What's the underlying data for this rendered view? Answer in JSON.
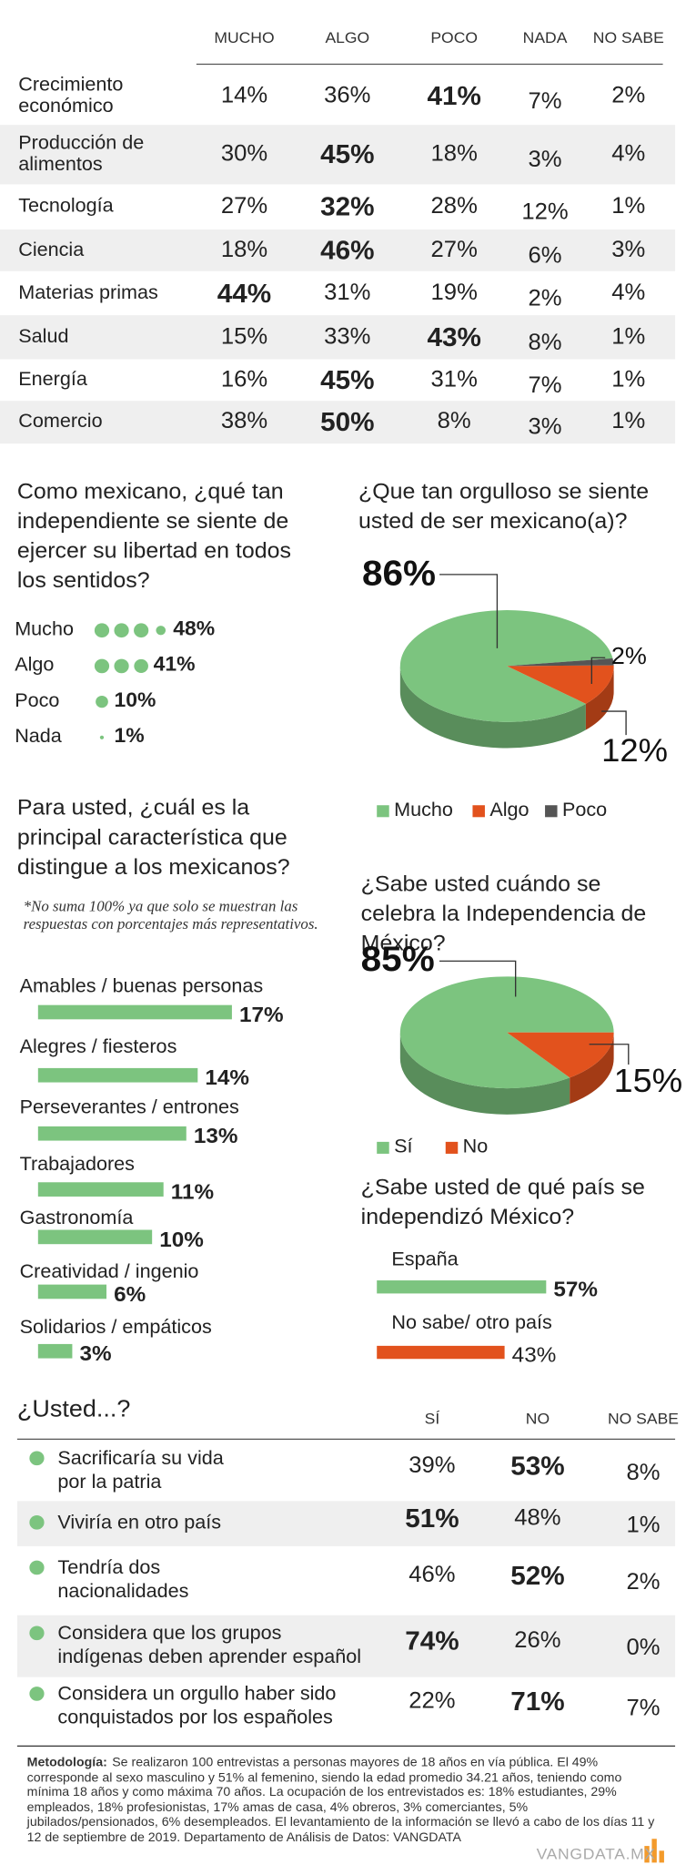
{
  "top_table": {
    "columns": [
      "MUCHO",
      "ALGO",
      "POCO",
      "NADA",
      "NO SABE"
    ],
    "rows": [
      {
        "label": "Crecimiento\neconómico",
        "cells": [
          "14%",
          "36%",
          "41%",
          "7%",
          "2%"
        ]
      },
      {
        "label": "Producción de\nalimentos",
        "cells": [
          "30%",
          "45%",
          "18%",
          "3%",
          "4%"
        ]
      },
      {
        "label": "Tecnología",
        "cells": [
          "27%",
          "32%",
          "28%",
          "12%",
          "1%"
        ]
      },
      {
        "label": "Ciencia",
        "cells": [
          "18%",
          "46%",
          "27%",
          "6%",
          "3%"
        ]
      },
      {
        "label": "Materias primas",
        "cells": [
          "44%",
          "31%",
          "19%",
          "2%",
          "4%"
        ]
      },
      {
        "label": "Salud",
        "cells": [
          "15%",
          "33%",
          "43%",
          "8%",
          "1%"
        ]
      },
      {
        "label": "Energía",
        "cells": [
          "16%",
          "45%",
          "31%",
          "7%",
          "1%"
        ]
      },
      {
        "label": "Comercio",
        "cells": [
          "38%",
          "50%",
          "8%",
          "3%",
          "1%"
        ]
      }
    ]
  },
  "chart_data": [
    {
      "type": "dots",
      "title": "Como mexicano, ¿qué tan independiente se siente de ejercer su libertad en todos los sentidos?",
      "categories": [
        "Mucho",
        "Algo",
        "Poco",
        "Nada"
      ],
      "values": [
        48,
        41,
        10,
        1
      ],
      "value_labels": [
        "48%",
        "41%",
        "10%",
        "1%"
      ],
      "color": "#7cc47f"
    },
    {
      "type": "pie",
      "title": "¿Que tan orgulloso se siente usted de ser mexicano(a)?",
      "categories": [
        "Mucho",
        "Algo",
        "Poco"
      ],
      "values": [
        86,
        12,
        2
      ],
      "value_labels": [
        "86%",
        "12%",
        "2%"
      ],
      "colors": [
        "#7cc47f",
        "#e2521d",
        "#555555"
      ]
    },
    {
      "type": "bar",
      "title": "Para usted, ¿cuál es la principal característica que distingue a los mexicanos?",
      "note": "*No suma 100% ya que solo se muestran las respuestas con porcentajes más representativos.",
      "categories": [
        "Amables / buenas personas",
        "Alegres / fiesteros",
        "Perseverantes / entrones",
        "Trabajadores",
        "Gastronomía",
        "Creatividad / ingenio",
        "Solidarios / empáticos"
      ],
      "values": [
        17,
        14,
        13,
        11,
        10,
        6,
        3
      ],
      "value_labels": [
        "17%",
        "14%",
        "13%",
        "11%",
        "10%",
        "6%",
        "3%"
      ],
      "color": "#7cc47f"
    },
    {
      "type": "pie",
      "title": "¿Sabe usted cuándo se celebra la Independencia de México?",
      "categories": [
        "Sí",
        "No"
      ],
      "values": [
        85,
        15
      ],
      "value_labels": [
        "85%",
        "15%"
      ],
      "colors": [
        "#7cc47f",
        "#e2521d"
      ]
    },
    {
      "type": "bar",
      "title": "¿Sabe usted de qué país se independizó México?",
      "categories": [
        "España",
        "No sabe/ otro país"
      ],
      "values": [
        57,
        43
      ],
      "value_labels": [
        "57%",
        "43%"
      ],
      "colors": [
        "#7cc47f",
        "#e2521d"
      ]
    }
  ],
  "bottom_table": {
    "title": "¿Usted...?",
    "columns": [
      "SÍ",
      "NO",
      "NO SABE"
    ],
    "rows": [
      {
        "label": "Sacrificaría su vida\npor la patria",
        "cells": [
          "39%",
          "53%",
          "8%"
        ]
      },
      {
        "label": "Viviría en otro país",
        "cells": [
          "51%",
          "48%",
          "1%"
        ]
      },
      {
        "label": "Tendría dos\nnacionalidades",
        "cells": [
          "46%",
          "52%",
          "2%"
        ]
      },
      {
        "label": "Considera que los grupos\nindígenas deben aprender español",
        "cells": [
          "74%",
          "26%",
          "0%"
        ]
      },
      {
        "label": "Considera un orgullo haber sido\nconquistados por los españoles",
        "cells": [
          "22%",
          "71%",
          "7%"
        ]
      }
    ]
  },
  "methodology": {
    "label": "Metodología:",
    "text": "Se realizaron 100 entrevistas a personas mayores de 18 años en vía pública. El 49% corresponde al sexo masculino y 51% al femenino, siendo la edad promedio 34.21 años, teniendo como mínima 18 años y como máxima 70 años. La ocupación de los entrevistados es: 18% estudiantes, 29% empleados, 18% profesionistas, 17% amas de casa, 4% obreros, 3% comerciantes, 5% jubilados/pensionados, 6% desempleados. El levantamiento de la información se llevó a cabo de los días 11 y 12 de septiembre de 2019. Departamento de Análisis de Datos: VANGDATA"
  },
  "footer": {
    "site": "VANGDATA.MX"
  }
}
